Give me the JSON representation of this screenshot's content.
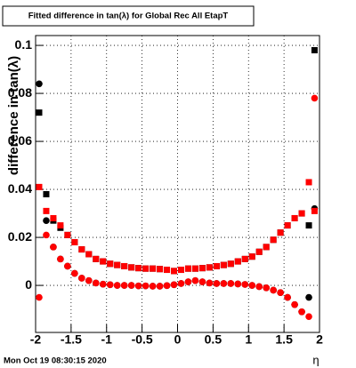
{
  "chart_data": {
    "type": "scatter",
    "title": "Fitted difference in tan(λ) for Global Rec All EtapT",
    "y_label": "difference in tan(λ)",
    "x_label": "η",
    "footer": "Mon Oct 19 08:30:15 2020",
    "xlim": [
      -2,
      2
    ],
    "ylim": [
      -0.0196,
      0.1041
    ],
    "xticks": [
      -2,
      -1.5,
      -1,
      -0.5,
      0,
      0.5,
      1,
      1.5,
      2
    ],
    "yticks": [
      0,
      0.02,
      0.04,
      0.06,
      0.08,
      0.1
    ],
    "grid": true,
    "x": [
      -1.95,
      -1.85,
      -1.75,
      -1.65,
      -1.55,
      -1.45,
      -1.35,
      -1.25,
      -1.15,
      -1.05,
      -0.95,
      -0.85,
      -0.75,
      -0.65,
      -0.55,
      -0.45,
      -0.35,
      -0.25,
      -0.15,
      -0.05,
      0.05,
      0.15,
      0.25,
      0.35,
      0.45,
      0.55,
      0.65,
      0.75,
      0.85,
      0.95,
      1.05,
      1.15,
      1.25,
      1.35,
      1.45,
      1.55,
      1.65,
      1.75,
      1.85,
      1.93
    ],
    "series": [
      {
        "color": "#000000",
        "marker": "square",
        "values": [
          0.072,
          0.038,
          0.027,
          0.024,
          0.021,
          0.018,
          0.015,
          0.013,
          0.011,
          0.01,
          0.009,
          0.0085,
          0.008,
          0.0075,
          0.0072,
          0.007,
          0.007,
          0.0068,
          0.0065,
          0.006,
          0.0065,
          0.007,
          0.007,
          0.0072,
          0.0075,
          0.008,
          0.0085,
          0.009,
          0.01,
          0.011,
          0.012,
          0.014,
          0.016,
          0.019,
          0.022,
          0.025,
          0.028,
          0.03,
          0.025,
          0.098
        ]
      },
      {
        "color": "#000000",
        "marker": "circle",
        "values": [
          0.084,
          0.027,
          0.016,
          0.011,
          0.008,
          0.005,
          0.003,
          0.002,
          0.001,
          0.0005,
          0.0003,
          0,
          0,
          0,
          -0.0002,
          -0.0002,
          -0.0003,
          -0.0003,
          -0.0001,
          0.0003,
          0.0008,
          0.0015,
          0.002,
          0.0015,
          0.001,
          0.0008,
          0.0008,
          0.0008,
          0.0006,
          0.0004,
          0,
          -0.0005,
          -0.001,
          -0.002,
          -0.003,
          -0.005,
          -0.008,
          -0.011,
          -0.005,
          0.032
        ]
      },
      {
        "color": "#ff0000",
        "marker": "square",
        "values": [
          0.041,
          0.031,
          0.028,
          0.025,
          0.021,
          0.018,
          0.015,
          0.013,
          0.011,
          0.01,
          0.009,
          0.0085,
          0.008,
          0.0075,
          0.0072,
          0.007,
          0.007,
          0.0068,
          0.0065,
          0.006,
          0.0065,
          0.007,
          0.007,
          0.0072,
          0.0075,
          0.008,
          0.0085,
          0.009,
          0.01,
          0.011,
          0.012,
          0.014,
          0.016,
          0.019,
          0.022,
          0.025,
          0.028,
          0.03,
          0.043,
          0.031
        ]
      },
      {
        "color": "#ff0000",
        "marker": "circle",
        "values": [
          -0.005,
          0.021,
          0.016,
          0.011,
          0.008,
          0.005,
          0.003,
          0.002,
          0.001,
          0.0005,
          0.0003,
          0,
          0,
          0,
          -0.0002,
          -0.0002,
          -0.0003,
          -0.0003,
          -0.0001,
          0.0003,
          0.0008,
          0.0015,
          0.002,
          0.0015,
          0.001,
          0.0008,
          0.0008,
          0.0008,
          0.0006,
          0.0004,
          0,
          -0.0005,
          -0.001,
          -0.002,
          -0.003,
          -0.005,
          -0.008,
          -0.011,
          -0.013,
          0.078
        ]
      }
    ]
  }
}
